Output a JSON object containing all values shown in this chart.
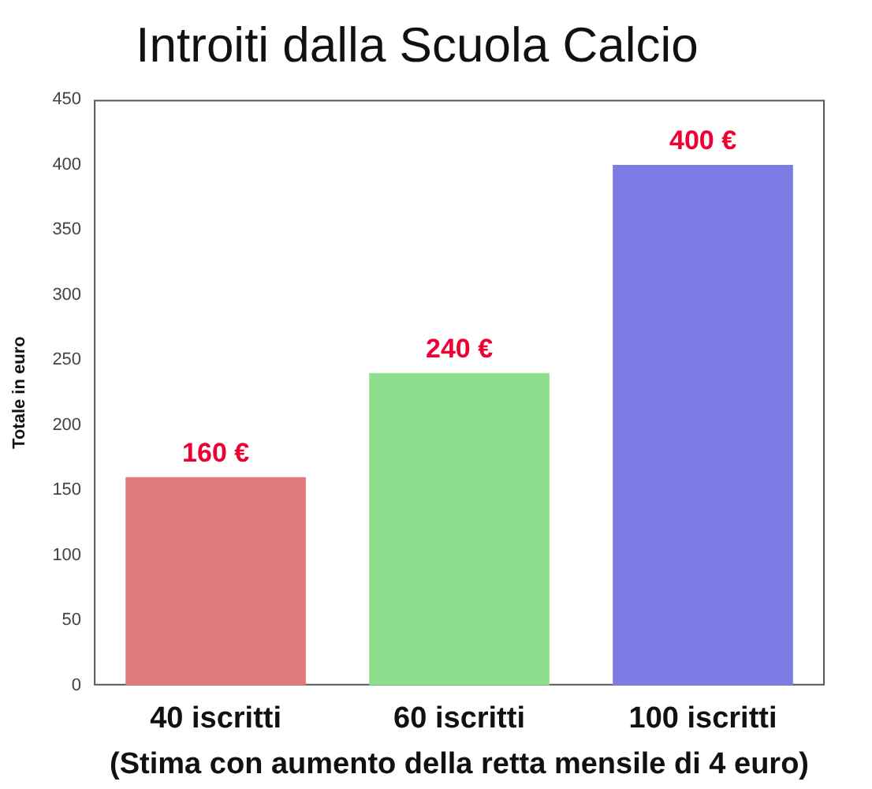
{
  "chart_data": {
    "type": "bar",
    "title": "Introiti dalla Scuola Calcio",
    "xlabel": "(Stima con aumento della retta mensile di 4 euro)",
    "ylabel": "Totale in euro",
    "categories": [
      "40 iscritti",
      "60 iscritti",
      "100 iscritti"
    ],
    "values": [
      160,
      240,
      400
    ],
    "value_labels": [
      "160 €",
      "240 €",
      "400 €"
    ],
    "colors": [
      "#e07a7a",
      "#8ede8e",
      "#7c7ce4"
    ],
    "ylim": [
      0,
      450
    ],
    "yticks": [
      0,
      50,
      100,
      150,
      200,
      250,
      300,
      350,
      400,
      450
    ]
  }
}
